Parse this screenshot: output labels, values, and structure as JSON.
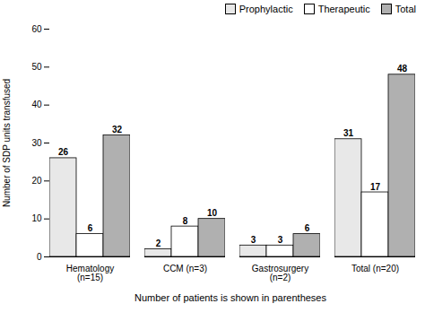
{
  "chart_data": {
    "type": "bar",
    "categories": [
      "Hematology\n(n=15)",
      "CCM (n=3)",
      "Gastrosurgery\n(n=2)",
      "Total (n=20)"
    ],
    "series": [
      {
        "name": "Prophylactic",
        "color": "#e8e8e8",
        "values": [
          26,
          2,
          3,
          31
        ]
      },
      {
        "name": "Therapeutic",
        "color": "white",
        "values": [
          6,
          8,
          3,
          17
        ]
      },
      {
        "name": "Total",
        "color": "#b0b0b0",
        "values": [
          32,
          10,
          6,
          48
        ]
      }
    ],
    "xlabel": "Number of patients is shown in parentheses",
    "ylabel": "Number of SDP units transfused",
    "ylim": [
      0,
      60
    ],
    "yticks": [
      0,
      10,
      20,
      30,
      40,
      50,
      60
    ],
    "legend": "upper right",
    "data_labels": true,
    "grid": false
  }
}
